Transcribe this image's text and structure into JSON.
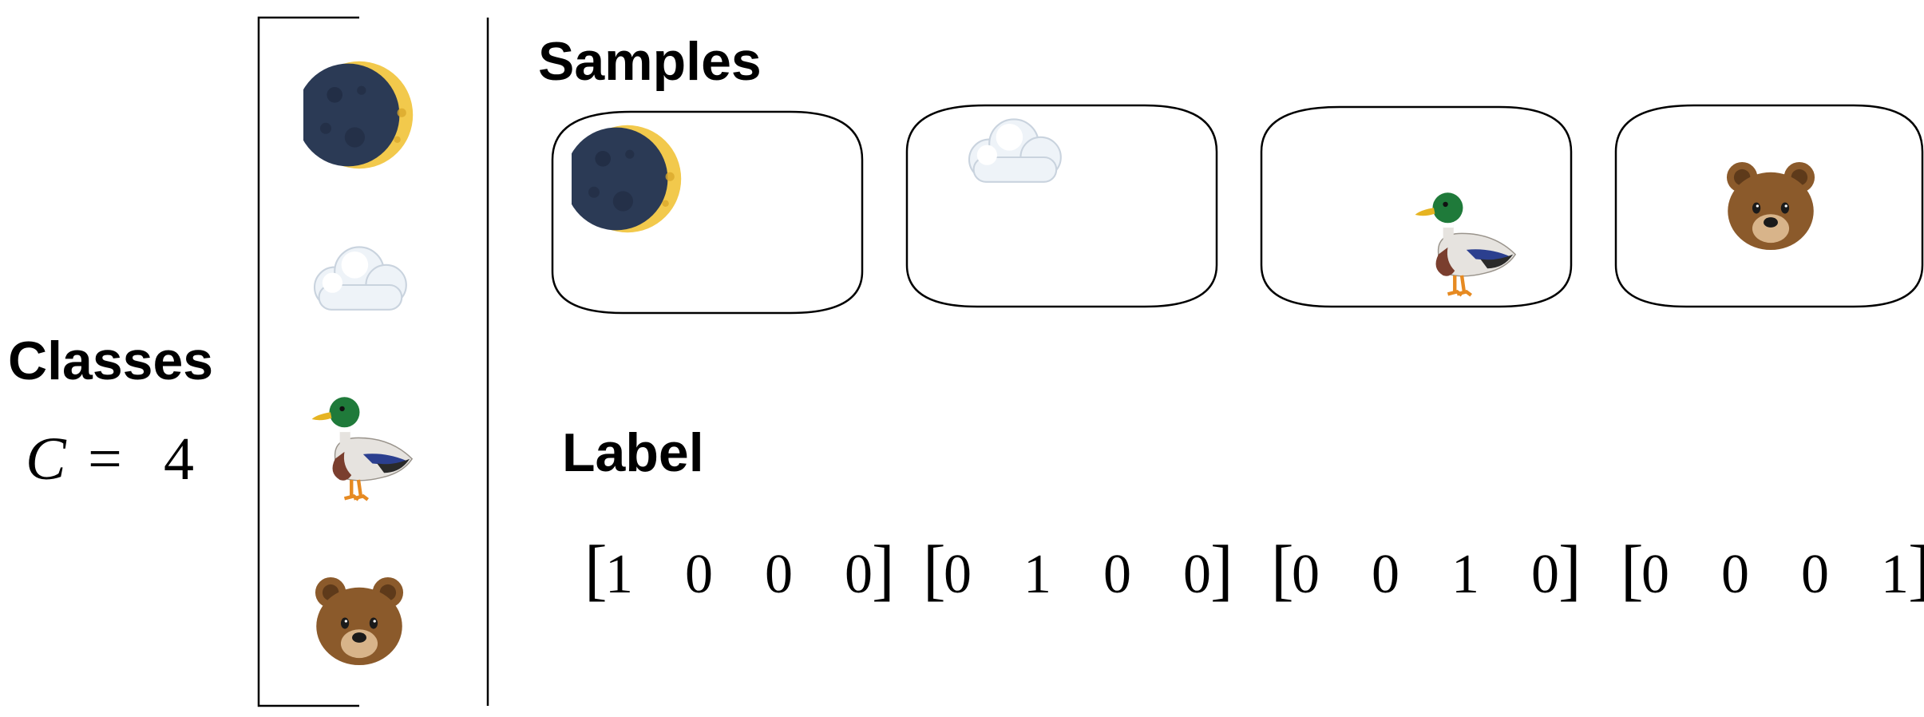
{
  "labels": {
    "classes_heading": "Classes",
    "class_count_var": "C",
    "class_count_eq": "=",
    "class_count_value": "4",
    "samples_heading": "Samples",
    "label_heading": "Label"
  },
  "classes": [
    {
      "name": "moon",
      "icon": "crescent-moon-icon"
    },
    {
      "name": "cloud",
      "icon": "cloud-icon"
    },
    {
      "name": "duck",
      "icon": "duck-icon"
    },
    {
      "name": "bear",
      "icon": "bear-face-icon"
    }
  ],
  "samples": [
    {
      "icon": "crescent-moon-icon"
    },
    {
      "icon": "cloud-icon"
    },
    {
      "icon": "duck-icon"
    },
    {
      "icon": "bear-face-icon"
    }
  ],
  "label_vectors": [
    [
      "1",
      "0",
      "0",
      "0"
    ],
    [
      "0",
      "1",
      "0",
      "0"
    ],
    [
      "0",
      "0",
      "1",
      "0"
    ],
    [
      "0",
      "0",
      "0",
      "1"
    ]
  ],
  "colors": {
    "moon_dark": "#2b3a55",
    "moon_light": "#f2c94c",
    "cloud": "#eef3f8",
    "duck_head": "#1f7a3a",
    "duck_body": "#e6e3df",
    "duck_chest": "#7a3e2e",
    "duck_bill": "#e6b422",
    "bear_fur": "#8b5a2b",
    "bear_muzzle": "#d8b48a"
  }
}
